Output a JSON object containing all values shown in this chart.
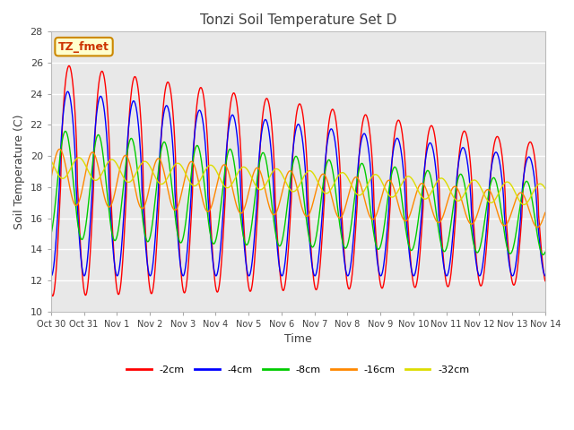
{
  "title": "Tonzi Soil Temperature Set D",
  "xlabel": "Time",
  "ylabel": "Soil Temperature (C)",
  "ylim": [
    10,
    28
  ],
  "xlim": [
    0,
    15
  ],
  "xtick_labels": [
    "Oct 30",
    "Oct 31",
    "Nov 1",
    "Nov 2",
    "Nov 3",
    "Nov 4",
    "Nov 5",
    "Nov 6",
    "Nov 7",
    "Nov 8",
    "Nov 9",
    "Nov 10",
    "Nov 11",
    "Nov 12",
    "Nov 13",
    "Nov 14"
  ],
  "series_labels": [
    "-2cm",
    "-4cm",
    "-8cm",
    "-16cm",
    "-32cm"
  ],
  "series_colors": [
    "#ff0000",
    "#0000ff",
    "#00cc00",
    "#ff8800",
    "#dddd00"
  ],
  "annotation_text": "TZ_fmet",
  "annotation_box_color": "#ffffcc",
  "annotation_border_color": "#cc8800",
  "plot_bg_color": "#e8e8e8",
  "grid_color": "#ffffff",
  "title_color": "#404040",
  "figsize": [
    6.4,
    4.8
  ],
  "dpi": 100
}
